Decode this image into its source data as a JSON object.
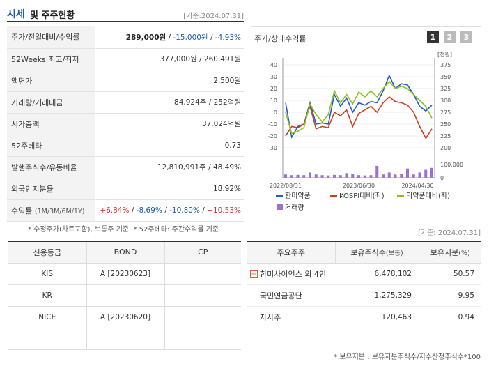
{
  "header": {
    "title_blue": "시세",
    "title_rest": "및 주주현황",
    "base_date": "[기준:2024.07.31]"
  },
  "stats": {
    "price": {
      "label": "주가/전일대비/수익률",
      "price": "289,000원",
      "change": "-15,000원",
      "rate": "-4.93%"
    },
    "w52": {
      "label": "52Weeks 최고/최저",
      "value": "377,000원 / 260,491원"
    },
    "par": {
      "label": "액면가",
      "value": "2,500원"
    },
    "volume": {
      "label": "거래량/거래대금",
      "value": "84,924주 / 252억원"
    },
    "mcap": {
      "label": "시가총액",
      "value": "37,024억원"
    },
    "beta": {
      "label": "52주베타",
      "value": "0.73"
    },
    "shares": {
      "label": "발행주식수/유동비율",
      "value": "12,810,991주 / 48.49%"
    },
    "foreign": {
      "label": "외국인지분율",
      "value": "18.92%"
    },
    "returns": {
      "label": "수익률",
      "label_sub": "(1M/3M/6M/1Y)",
      "r1": "+6.84%",
      "r2": "-8.69%",
      "r3": "-10.80%",
      "r4": "+10.53%"
    }
  },
  "footnote_stats": "* 수정주가(차트포함), 보통주 기준, * 52주베타: 주간수익률 기준",
  "chart_panel": {
    "label": "주가/상대수익률",
    "buttons": [
      "1",
      "2",
      "3"
    ]
  },
  "chart_data": {
    "type": "line",
    "y_left_ticks": [
      "40",
      "30",
      "20",
      "10",
      "0",
      "-10",
      "-20",
      "-30"
    ],
    "y_left_range": [
      -30,
      40
    ],
    "y_right_label": "[천원]",
    "y_right_ticks": [
      "375",
      "350",
      "325",
      "300",
      "275",
      "250",
      "225",
      "200"
    ],
    "y_right_range": [
      200,
      375
    ],
    "volume_ticks": [
      "100,000",
      "0"
    ],
    "volume_range": [
      0,
      100000
    ],
    "x_labels": [
      "2022/08/31",
      "2023/06/30",
      "2024/04/30"
    ],
    "series": [
      {
        "name": "한미약품",
        "color": "#1f5bd6",
        "values": [
          8,
          -21,
          -12,
          -10,
          8,
          -10,
          -9,
          -10,
          15,
          5,
          12,
          0,
          8,
          6,
          9,
          8,
          18,
          31,
          20,
          24,
          23,
          15,
          5,
          1,
          6
        ]
      },
      {
        "name": "KOSPI대비(좌)",
        "color": "#d23a1e",
        "values": [
          -20,
          -12,
          -13,
          -10,
          5,
          -14,
          -12,
          -13,
          0,
          -3,
          2,
          -12,
          -1,
          2,
          5,
          0,
          8,
          13,
          9,
          8,
          6,
          0,
          -12,
          -22,
          -14
        ]
      },
      {
        "name": "의약품대비(좌)",
        "color": "#8cc21e",
        "values": [
          0,
          -18,
          -16,
          -13,
          7,
          -2,
          -8,
          -2,
          18,
          8,
          15,
          7,
          17,
          13,
          18,
          13,
          20,
          26,
          20,
          22,
          20,
          15,
          10,
          5,
          -5
        ]
      }
    ],
    "volume": {
      "name": "거래량",
      "color": "#9b6fd6",
      "values": [
        25000,
        20000,
        22000,
        20000,
        40000,
        25000,
        20000,
        18000,
        22000,
        20000,
        35000,
        30000,
        20000,
        18000,
        20000,
        90000,
        25000,
        40000,
        25000,
        30000,
        70000,
        25000,
        40000,
        60000,
        75000
      ]
    }
  },
  "footnote_chart": "[기준: 2024.07.31]",
  "credit": {
    "headers": [
      "신용등급",
      "BOND",
      "CP"
    ],
    "rows": [
      {
        "agency": "KIS",
        "bond": "A [20230623]",
        "cp": ""
      },
      {
        "agency": "KR",
        "bond": "",
        "cp": ""
      },
      {
        "agency": "NICE",
        "bond": "A [20230620]",
        "cp": ""
      },
      {
        "agency": "",
        "bond": "",
        "cp": ""
      }
    ]
  },
  "holders": {
    "headers": {
      "name": "주요주주",
      "shares": "보유주식수",
      "shares_unit": "(보통)",
      "ratio": "보유지분",
      "ratio_unit": "(%)"
    },
    "rows": [
      {
        "name": "한미사이언스 외 4인",
        "shares": "6,478,102",
        "ratio": "50.57"
      },
      {
        "name": "국민연금공단",
        "shares": "1,275,329",
        "ratio": "9.95"
      },
      {
        "name": "자사주",
        "shares": "120,463",
        "ratio": "0.94"
      }
    ]
  },
  "footnote_holders": "* 보유지분 : 보유지분주식수/지수산정주식수*100"
}
